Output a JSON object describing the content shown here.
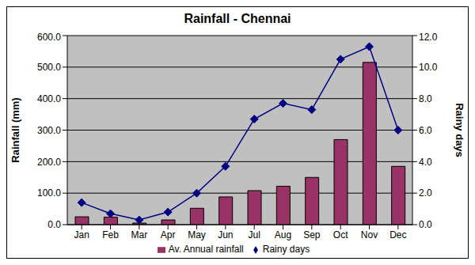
{
  "chart_data": {
    "type": "bar",
    "title": "Rainfall - Chennai",
    "y_label": "Rainfall (mm)",
    "y2_label": "Rainy days",
    "categories": [
      "Jan",
      "Feb",
      "Mar",
      "Apr",
      "May",
      "Jun",
      "Jul",
      "Aug",
      "Sep",
      "Oct",
      "Nov",
      "Dec"
    ],
    "series": [
      {
        "name": "Av. Annual rainfall",
        "type": "bar",
        "color": "#993366",
        "values": [
          25,
          24,
          5,
          15,
          52,
          88,
          108,
          122,
          150,
          270,
          515,
          185
        ]
      },
      {
        "name": "Rainy days",
        "type": "line",
        "axis": "y2",
        "color": "#000080",
        "marker": "diamond",
        "line_style": "solid",
        "values": [
          1.4,
          0.7,
          0.3,
          0.8,
          2.0,
          3.7,
          6.7,
          7.7,
          7.3,
          10.5,
          11.3,
          6.0
        ]
      }
    ],
    "ylim": [
      0,
      600
    ],
    "yticks": [
      {
        "value": 0,
        "label": "0.0"
      },
      {
        "value": 100,
        "label": "100.0"
      },
      {
        "value": 200,
        "label": "200.0"
      },
      {
        "value": 300,
        "label": "300.0"
      },
      {
        "value": 400,
        "label": "400.0"
      },
      {
        "value": 500,
        "label": "500.0"
      },
      {
        "value": 600,
        "label": "600.0"
      }
    ],
    "y2lim": [
      0,
      12
    ],
    "y2ticks": [
      {
        "value": 0,
        "label": "0.0"
      },
      {
        "value": 2,
        "label": "2.0"
      },
      {
        "value": 4,
        "label": "4.0"
      },
      {
        "value": 6,
        "label": "6.0"
      },
      {
        "value": 8,
        "label": "8.0"
      },
      {
        "value": 10,
        "label": "10.0"
      },
      {
        "value": 12,
        "label": "12.0"
      }
    ],
    "grid": true,
    "legend": "bottom"
  }
}
